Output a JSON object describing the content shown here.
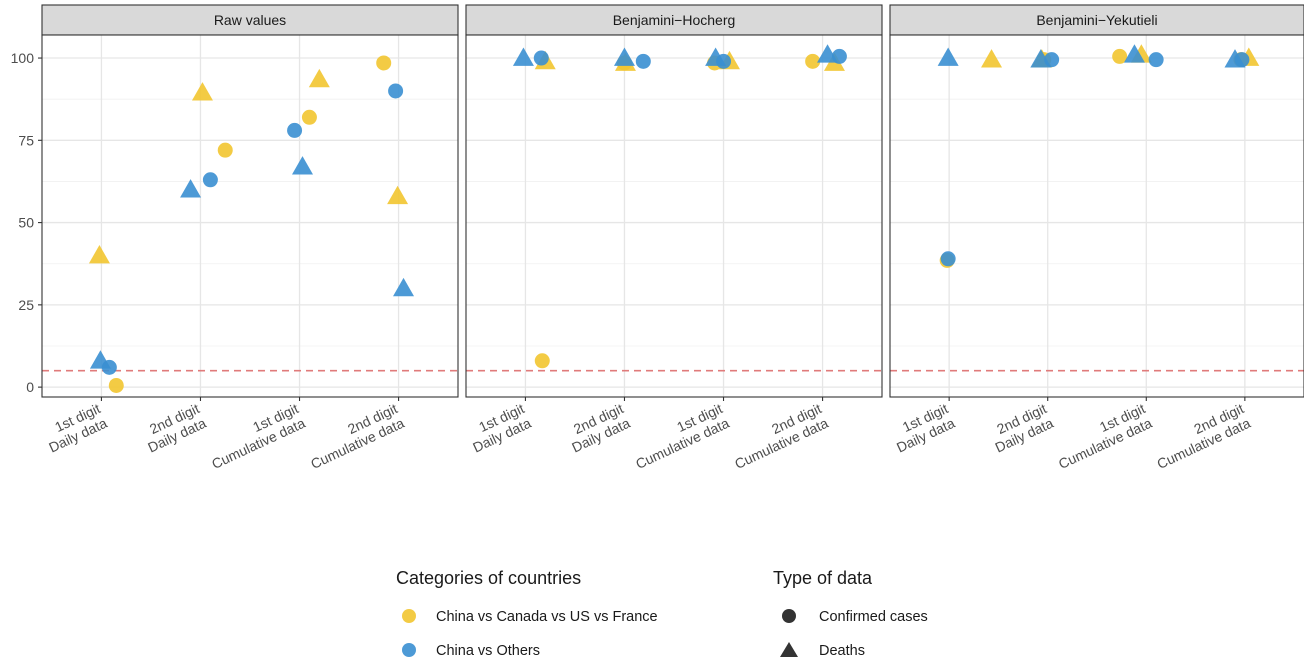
{
  "chart_data": {
    "type": "scatter",
    "facets": [
      "Raw values",
      "Benjamini−Hocherg",
      "Benjamini−Yekutieli"
    ],
    "x_categories": [
      [
        "1st digit",
        "Daily data"
      ],
      [
        "2nd digit",
        "Daily data"
      ],
      [
        "1st digit",
        "Cumulative data"
      ],
      [
        "2nd digit",
        "Cumulative data"
      ]
    ],
    "ylim": [
      -3,
      107
    ],
    "y_ticks": [
      0,
      25,
      50,
      75,
      100
    ],
    "reference_line": {
      "y": 5,
      "style": "dashed",
      "color": "#e07b7b"
    },
    "grid": true,
    "legend_placement": "bottom",
    "colors": {
      "China vs Canada vs US vs France": "#f2c530",
      "China vs Others": "#3a8fd1"
    },
    "legend": {
      "color_title": "Categories of countries",
      "color_items": [
        "China vs Canada vs US vs France",
        "China vs Others"
      ],
      "shape_title": "Type of data",
      "shape_items": [
        "Confirmed cases",
        "Deaths"
      ]
    },
    "points": [
      {
        "facet": "Raw values",
        "cat": 0,
        "group": "China vs Canada vs US vs France",
        "type": "Confirmed cases",
        "y": 0.5,
        "jitter": 0.15
      },
      {
        "facet": "Raw values",
        "cat": 0,
        "group": "China vs Canada vs US vs France",
        "type": "Deaths",
        "y": 40,
        "jitter": -0.02
      },
      {
        "facet": "Raw values",
        "cat": 0,
        "group": "China vs Others",
        "type": "Confirmed cases",
        "y": 6,
        "jitter": 0.08
      },
      {
        "facet": "Raw values",
        "cat": 0,
        "group": "China vs Others",
        "type": "Deaths",
        "y": 8,
        "jitter": -0.01
      },
      {
        "facet": "Raw values",
        "cat": 1,
        "group": "China vs Canada vs US vs France",
        "type": "Confirmed cases",
        "y": 72,
        "jitter": 0.25
      },
      {
        "facet": "Raw values",
        "cat": 1,
        "group": "China vs Canada vs US vs France",
        "type": "Deaths",
        "y": 89.5,
        "jitter": 0.02
      },
      {
        "facet": "Raw values",
        "cat": 1,
        "group": "China vs Others",
        "type": "Confirmed cases",
        "y": 63,
        "jitter": 0.1
      },
      {
        "facet": "Raw values",
        "cat": 1,
        "group": "China vs Others",
        "type": "Deaths",
        "y": 60,
        "jitter": -0.1
      },
      {
        "facet": "Raw values",
        "cat": 2,
        "group": "China vs Canada vs US vs France",
        "type": "Confirmed cases",
        "y": 82,
        "jitter": 0.1
      },
      {
        "facet": "Raw values",
        "cat": 2,
        "group": "China vs Canada vs US vs France",
        "type": "Deaths",
        "y": 93.5,
        "jitter": 0.2
      },
      {
        "facet": "Raw values",
        "cat": 2,
        "group": "China vs Others",
        "type": "Confirmed cases",
        "y": 78,
        "jitter": -0.05
      },
      {
        "facet": "Raw values",
        "cat": 2,
        "group": "China vs Others",
        "type": "Deaths",
        "y": 67,
        "jitter": 0.03
      },
      {
        "facet": "Raw values",
        "cat": 3,
        "group": "China vs Canada vs US vs France",
        "type": "Confirmed cases",
        "y": 98.5,
        "jitter": -0.15
      },
      {
        "facet": "Raw values",
        "cat": 3,
        "group": "China vs Canada vs US vs France",
        "type": "Deaths",
        "y": 58,
        "jitter": -0.01
      },
      {
        "facet": "Raw values",
        "cat": 3,
        "group": "China vs Others",
        "type": "Confirmed cases",
        "y": 90,
        "jitter": -0.03
      },
      {
        "facet": "Raw values",
        "cat": 3,
        "group": "China vs Others",
        "type": "Deaths",
        "y": 30,
        "jitter": 0.05
      },
      {
        "facet": "Benjamini−Hocherg",
        "cat": 0,
        "group": "China vs Canada vs US vs France",
        "type": "Confirmed cases",
        "y": 8,
        "jitter": 0.17
      },
      {
        "facet": "Benjamini−Hocherg",
        "cat": 0,
        "group": "China vs Canada vs US vs France",
        "type": "Deaths",
        "y": 99,
        "jitter": 0.2
      },
      {
        "facet": "Benjamini−Hocherg",
        "cat": 0,
        "group": "China vs Others",
        "type": "Confirmed cases",
        "y": 100,
        "jitter": 0.16
      },
      {
        "facet": "Benjamini−Hocherg",
        "cat": 0,
        "group": "China vs Others",
        "type": "Deaths",
        "y": 100,
        "jitter": -0.02
      },
      {
        "facet": "Benjamini−Hocherg",
        "cat": 1,
        "group": "China vs Canada vs US vs France",
        "type": "Confirmed cases",
        "y": 98.5,
        "jitter": 0.0
      },
      {
        "facet": "Benjamini−Hocherg",
        "cat": 1,
        "group": "China vs Canada vs US vs France",
        "type": "Deaths",
        "y": 98.5,
        "jitter": 0.01
      },
      {
        "facet": "Benjamini−Hocherg",
        "cat": 1,
        "group": "China vs Others",
        "type": "Confirmed cases",
        "y": 99,
        "jitter": 0.19
      },
      {
        "facet": "Benjamini−Hocherg",
        "cat": 1,
        "group": "China vs Others",
        "type": "Deaths",
        "y": 100,
        "jitter": 0.0
      },
      {
        "facet": "Benjamini−Hocherg",
        "cat": 2,
        "group": "China vs Canada vs US vs France",
        "type": "Confirmed cases",
        "y": 98.5,
        "jitter": -0.09
      },
      {
        "facet": "Benjamini−Hocherg",
        "cat": 2,
        "group": "China vs Canada vs US vs France",
        "type": "Deaths",
        "y": 99,
        "jitter": 0.06
      },
      {
        "facet": "Benjamini−Hocherg",
        "cat": 2,
        "group": "China vs Others",
        "type": "Confirmed cases",
        "y": 99,
        "jitter": 0.0
      },
      {
        "facet": "Benjamini−Hocherg",
        "cat": 2,
        "group": "China vs Others",
        "type": "Deaths",
        "y": 100,
        "jitter": -0.08
      },
      {
        "facet": "Benjamini−Hocherg",
        "cat": 3,
        "group": "China vs Canada vs US vs France",
        "type": "Confirmed cases",
        "y": 99,
        "jitter": -0.1
      },
      {
        "facet": "Benjamini−Hocherg",
        "cat": 3,
        "group": "China vs Canada vs US vs France",
        "type": "Deaths",
        "y": 98.5,
        "jitter": 0.12
      },
      {
        "facet": "Benjamini−Hocherg",
        "cat": 3,
        "group": "China vs Others",
        "type": "Confirmed cases",
        "y": 100.5,
        "jitter": 0.17
      },
      {
        "facet": "Benjamini−Hocherg",
        "cat": 3,
        "group": "China vs Others",
        "type": "Deaths",
        "y": 101,
        "jitter": 0.05
      },
      {
        "facet": "Benjamini−Yekutieli",
        "cat": 0,
        "group": "China vs Canada vs US vs France",
        "type": "Confirmed cases",
        "y": 38.5,
        "jitter": -0.02
      },
      {
        "facet": "Benjamini−Yekutieli",
        "cat": 0,
        "group": "China vs Canada vs US vs France",
        "type": "Deaths",
        "y": 99.5,
        "jitter": 0.43
      },
      {
        "facet": "Benjamini−Yekutieli",
        "cat": 0,
        "group": "China vs Others",
        "type": "Confirmed cases",
        "y": 39,
        "jitter": -0.01
      },
      {
        "facet": "Benjamini−Yekutieli",
        "cat": 0,
        "group": "China vs Others",
        "type": "Deaths",
        "y": 100,
        "jitter": -0.01
      },
      {
        "facet": "Benjamini−Yekutieli",
        "cat": 1,
        "group": "China vs Canada vs US vs France",
        "type": "Confirmed cases",
        "y": 99.5,
        "jitter": -0.04
      },
      {
        "facet": "Benjamini−Yekutieli",
        "cat": 1,
        "group": "China vs Canada vs US vs France",
        "type": "Deaths",
        "y": 99.5,
        "jitter": -0.06
      },
      {
        "facet": "Benjamini−Yekutieli",
        "cat": 1,
        "group": "China vs Others",
        "type": "Confirmed cases",
        "y": 99.5,
        "jitter": 0.04
      },
      {
        "facet": "Benjamini−Yekutieli",
        "cat": 1,
        "group": "China vs Others",
        "type": "Deaths",
        "y": 99.5,
        "jitter": -0.07
      },
      {
        "facet": "Benjamini−Yekutieli",
        "cat": 2,
        "group": "China vs Canada vs US vs France",
        "type": "Confirmed cases",
        "y": 100.5,
        "jitter": -0.27
      },
      {
        "facet": "Benjamini−Yekutieli",
        "cat": 2,
        "group": "China vs Canada vs US vs France",
        "type": "Deaths",
        "y": 101,
        "jitter": -0.05
      },
      {
        "facet": "Benjamini−Yekutieli",
        "cat": 2,
        "group": "China vs Others",
        "type": "Confirmed cases",
        "y": 99.5,
        "jitter": 0.1
      },
      {
        "facet": "Benjamini−Yekutieli",
        "cat": 2,
        "group": "China vs Others",
        "type": "Deaths",
        "y": 101,
        "jitter": -0.12
      },
      {
        "facet": "Benjamini−Yekutieli",
        "cat": 3,
        "group": "China vs Canada vs US vs France",
        "type": "Confirmed cases",
        "y": 99.5,
        "jitter": -0.04
      },
      {
        "facet": "Benjamini−Yekutieli",
        "cat": 3,
        "group": "China vs Canada vs US vs France",
        "type": "Deaths",
        "y": 100,
        "jitter": 0.04
      },
      {
        "facet": "Benjamini−Yekutieli",
        "cat": 3,
        "group": "China vs Others",
        "type": "Confirmed cases",
        "y": 99.5,
        "jitter": -0.03
      },
      {
        "facet": "Benjamini−Yekutieli",
        "cat": 3,
        "group": "China vs Others",
        "type": "Deaths",
        "y": 99.5,
        "jitter": -0.1
      }
    ]
  }
}
